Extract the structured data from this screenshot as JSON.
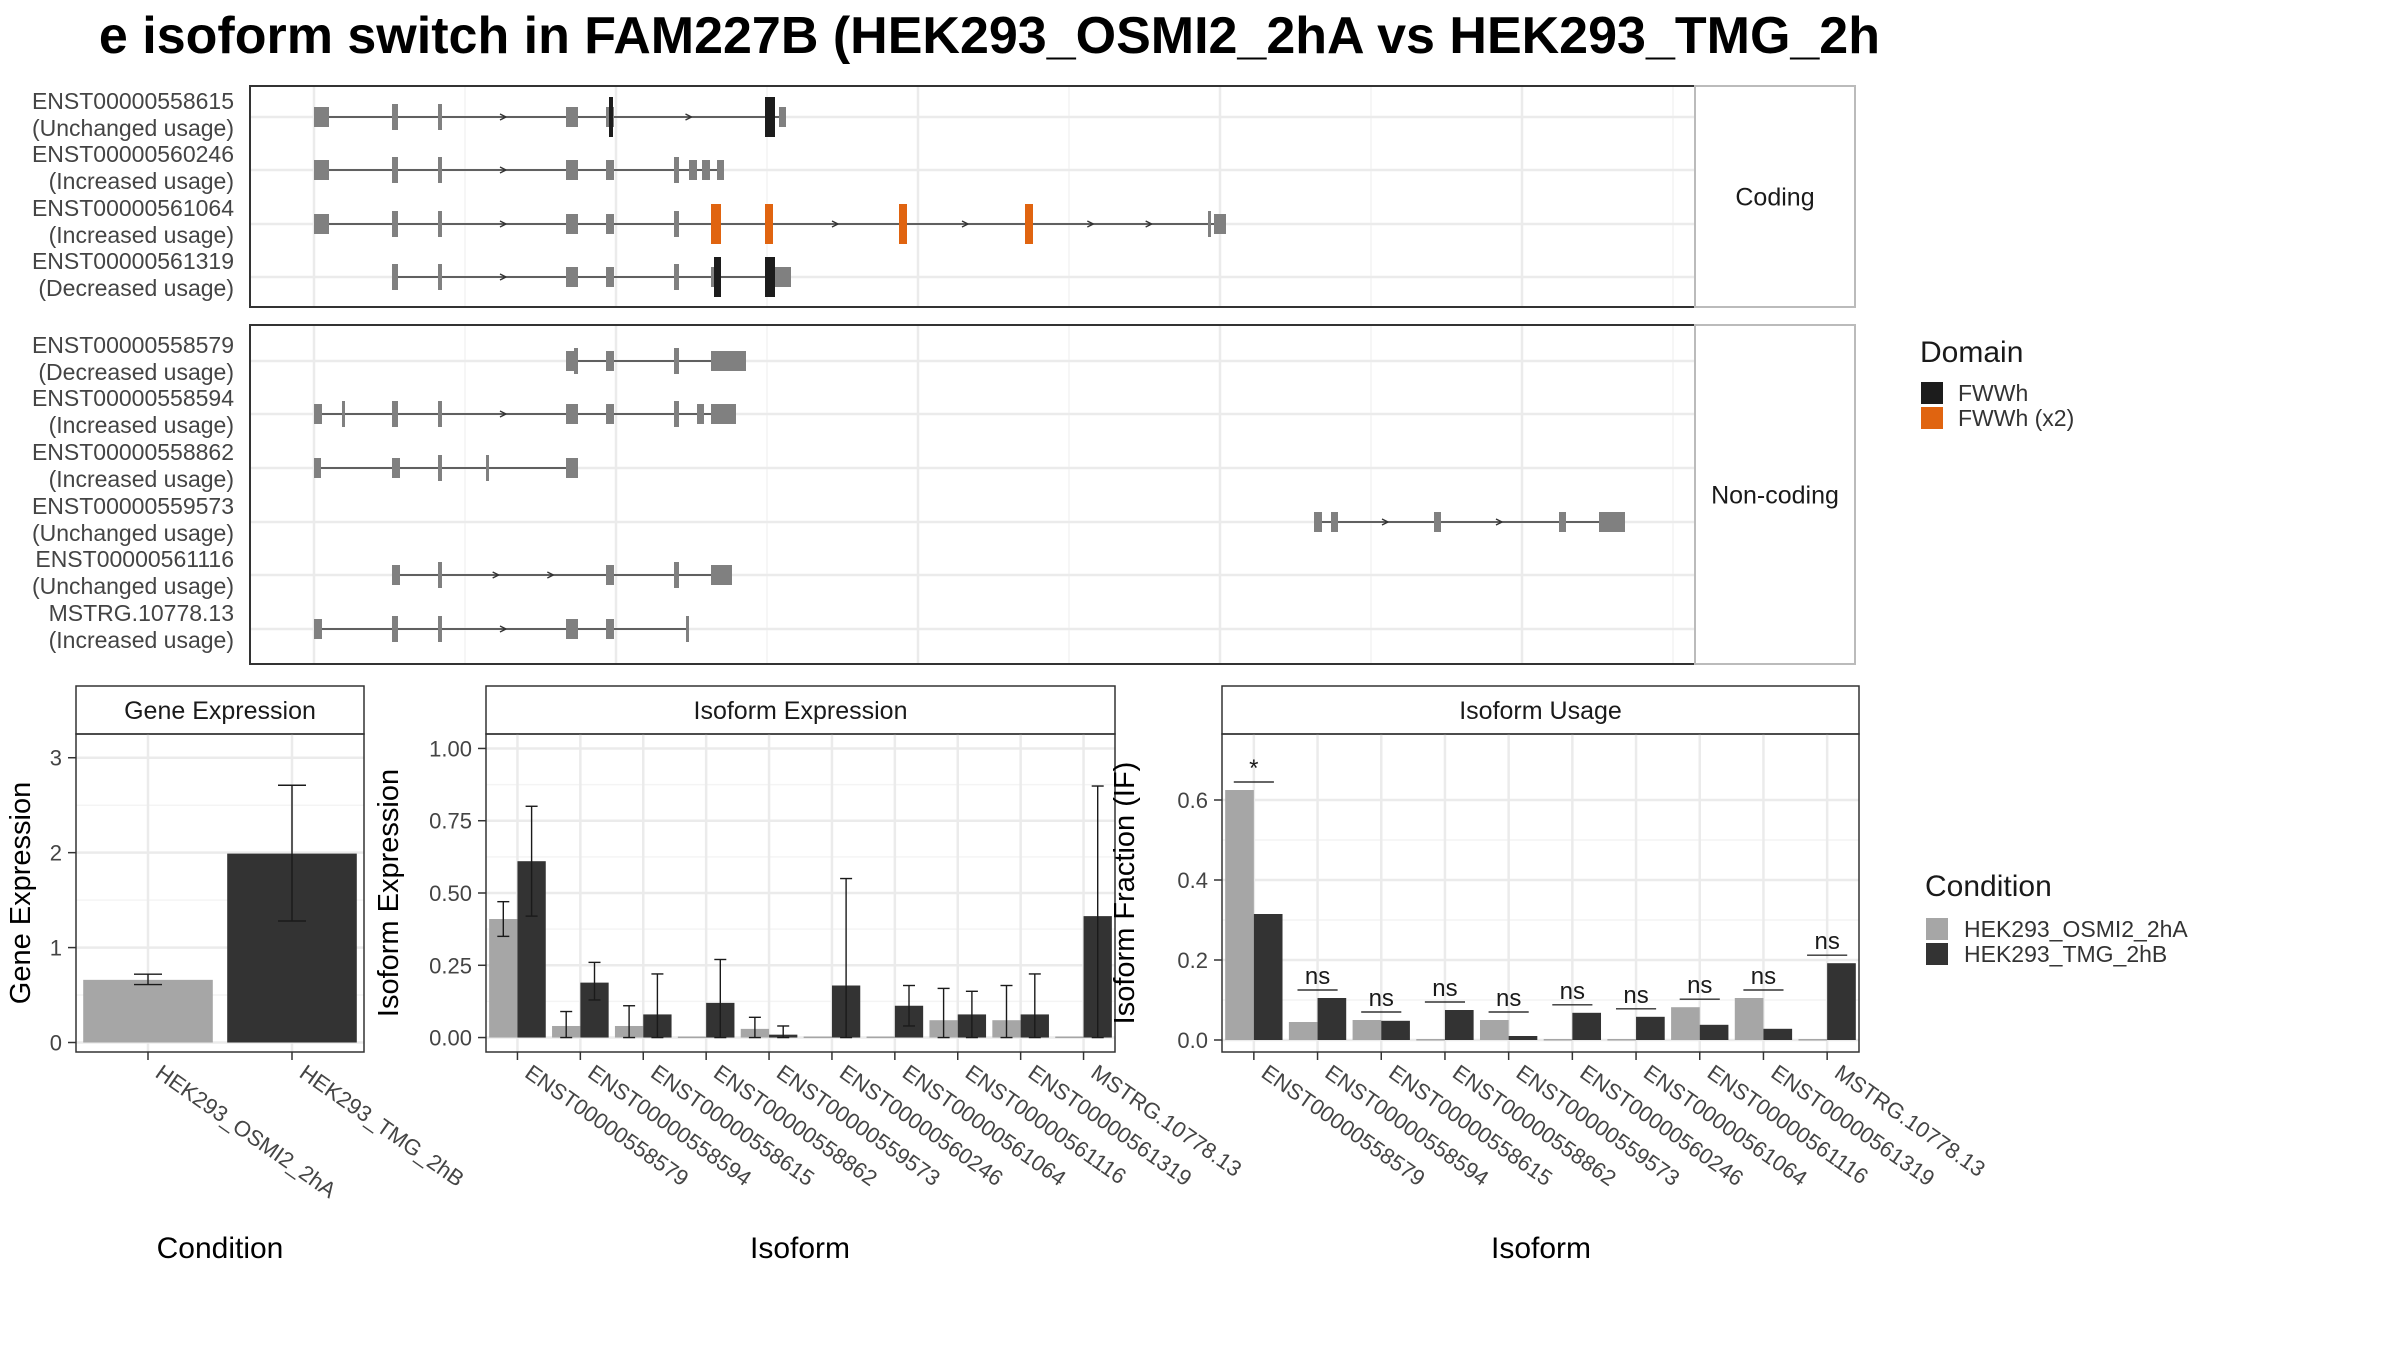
{
  "title": "e isoform switch in FAM227B (HEK293_OSMI2_2hA vs HEK293_TMG_2h",
  "structure": {
    "panels": [
      {
        "label": "Coding",
        "transcripts": [
          {
            "id": "ENST00000558615",
            "usage": "(Unchanged usage)",
            "exons": [
              [
                0,
                15
              ],
              [
                78,
                84
              ],
              [
                124,
                128
              ],
              [
                252,
                264
              ],
              [
                292,
                300
              ],
              [
                451,
                461
              ],
              [
                465,
                472
              ]
            ],
            "domains": [
              {
                "range": [
                  295,
                  298
                ],
                "domain": "FWWh"
              },
              {
                "range": [
                  451,
                  461
                ],
                "domain": "FWWh"
              }
            ]
          },
          {
            "id": "ENST00000560246",
            "usage": "(Increased usage)",
            "exons": [
              [
                0,
                15
              ],
              [
                78,
                84
              ],
              [
                124,
                128
              ],
              [
                252,
                264
              ],
              [
                292,
                300
              ],
              [
                360,
                365
              ],
              [
                375,
                383
              ],
              [
                388,
                396
              ],
              [
                403,
                410
              ]
            ],
            "domains": []
          },
          {
            "id": "ENST00000561064",
            "usage": "(Increased usage)",
            "exons": [
              [
                0,
                15
              ],
              [
                78,
                84
              ],
              [
                124,
                128
              ],
              [
                252,
                264
              ],
              [
                292,
                300
              ],
              [
                360,
                365
              ],
              [
                397,
                407
              ],
              [
                451,
                459
              ],
              [
                585,
                593
              ],
              [
                711,
                719
              ],
              [
                894,
                896
              ],
              [
                900,
                912
              ]
            ],
            "domains": [
              {
                "range": [
                  397,
                  407
                ],
                "domain": "FWWh (x2)"
              },
              {
                "range": [
                  451,
                  459
                ],
                "domain": "FWWh (x2)"
              },
              {
                "range": [
                  585,
                  593
                ],
                "domain": "FWWh (x2)"
              },
              {
                "range": [
                  711,
                  719
                ],
                "domain": "FWWh (x2)"
              }
            ]
          },
          {
            "id": "ENST00000561319",
            "usage": "(Decreased usage)",
            "exons": [
              [
                78,
                84
              ],
              [
                124,
                128
              ],
              [
                252,
                264
              ],
              [
                292,
                300
              ],
              [
                360,
                365
              ],
              [
                397,
                407
              ],
              [
                451,
                461
              ],
              [
                461,
                477
              ]
            ],
            "domains": [
              {
                "range": [
                  400,
                  407
                ],
                "domain": "FWWh"
              },
              {
                "range": [
                  451,
                  461
                ],
                "domain": "FWWh"
              }
            ]
          }
        ]
      },
      {
        "label": "Non-coding",
        "transcripts": [
          {
            "id": "ENST00000558579",
            "usage": "(Decreased usage)",
            "exons": [
              [
                252,
                260
              ],
              [
                260,
                264
              ],
              [
                292,
                300
              ],
              [
                360,
                365
              ],
              [
                397,
                410
              ],
              [
                410,
                432
              ]
            ],
            "domains": []
          },
          {
            "id": "ENST00000558594",
            "usage": "(Increased usage)",
            "exons": [
              [
                0,
                8
              ],
              [
                28,
                31
              ],
              [
                78,
                84
              ],
              [
                124,
                128
              ],
              [
                252,
                264
              ],
              [
                292,
                300
              ],
              [
                360,
                365
              ],
              [
                383,
                390
              ],
              [
                397,
                422
              ]
            ],
            "domains": []
          },
          {
            "id": "ENST00000558862",
            "usage": "(Increased usage)",
            "exons": [
              [
                0,
                7
              ],
              [
                78,
                86
              ],
              [
                124,
                128
              ],
              [
                172,
                175
              ],
              [
                252,
                264
              ]
            ],
            "domains": []
          },
          {
            "id": "ENST00000559573",
            "usage": "(Unchanged usage)",
            "exons": [
              [
                1000,
                1008
              ],
              [
                1017,
                1024
              ],
              [
                1120,
                1127
              ],
              [
                1245,
                1252
              ],
              [
                1285,
                1311
              ]
            ],
            "domains": []
          },
          {
            "id": "ENST00000561116",
            "usage": "(Unchanged usage)",
            "exons": [
              [
                78,
                86
              ],
              [
                124,
                128
              ],
              [
                292,
                300
              ],
              [
                360,
                365
              ],
              [
                397,
                418
              ]
            ],
            "domains": []
          },
          {
            "id": "MSTRG.10778.13",
            "usage": "(Increased usage)",
            "exons": [
              [
                0,
                8
              ],
              [
                78,
                84
              ],
              [
                124,
                128
              ],
              [
                252,
                264
              ],
              [
                292,
                300
              ],
              [
                372,
                374
              ]
            ],
            "domains": []
          }
        ]
      }
    ],
    "legend_title": "Domain",
    "legend": [
      {
        "name": "FWWh",
        "color": "#1c1c1c"
      },
      {
        "name": "FWWh (x2)",
        "color": "#e06410"
      }
    ],
    "exon_color": "#808080"
  },
  "gene_expression": {
    "strip": "Gene Expression",
    "ylabel": "Gene Expression",
    "xlabel": "Condition",
    "categories": [
      "HEK293_OSMI2_2hA",
      "HEK293_TMG_2hB"
    ],
    "yticks": [
      "0",
      "1",
      "2",
      "3"
    ]
  },
  "isoform_expression": {
    "strip": "Isoform Expression",
    "ylabel": "Isoform Expression",
    "xlabel": "Isoform",
    "yticks": [
      "0.00",
      "0.25",
      "0.50",
      "0.75",
      "1.00"
    ]
  },
  "isoform_usage": {
    "strip": "Isoform Usage",
    "ylabel": "Isoform Fraction (IF)",
    "xlabel": "Isoform",
    "yticks": [
      "0.0",
      "0.2",
      "0.4",
      "0.6"
    ],
    "significance": [
      "*",
      "ns",
      "ns",
      "ns",
      "ns",
      "ns",
      "ns",
      "ns",
      "ns",
      "ns"
    ]
  },
  "condition_legend": {
    "title": "Condition",
    "entries": [
      {
        "name": "HEK293_OSMI2_2hA",
        "color": "#a6a6a6"
      },
      {
        "name": "HEK293_TMG_2hB",
        "color": "#333333"
      }
    ]
  },
  "chart_data": [
    {
      "type": "bar",
      "title": "Gene Expression",
      "xlabel": "Condition",
      "ylabel": "Gene Expression",
      "categories": [
        "HEK293_OSMI2_2hA",
        "HEK293_TMG_2hB"
      ],
      "values": [
        0.66,
        1.99
      ],
      "errors": [
        [
          0.61,
          0.72
        ],
        [
          1.28,
          2.71
        ]
      ],
      "ylim": [
        -0.1,
        3.25
      ]
    },
    {
      "type": "bar",
      "title": "Isoform Expression",
      "xlabel": "Isoform",
      "ylabel": "Isoform Expression",
      "categories": [
        "ENST00000558579",
        "ENST00000558594",
        "ENST00000558615",
        "ENST00000558862",
        "ENST00000559573",
        "ENST00000560246",
        "ENST00000561064",
        "ENST00000561116",
        "ENST00000561319",
        "MSTRG.10778.13"
      ],
      "series": [
        {
          "name": "HEK293_OSMI2_2hA",
          "values": [
            0.41,
            0.04,
            0.04,
            0.0,
            0.03,
            0.0,
            0.0,
            0.06,
            0.06,
            0.0
          ],
          "errors": [
            [
              0.35,
              0.47
            ],
            [
              0.0,
              0.09
            ],
            [
              0.0,
              0.11
            ],
            null,
            [
              0.0,
              0.07
            ],
            null,
            null,
            [
              0.0,
              0.17
            ],
            [
              0.0,
              0.18
            ],
            null
          ]
        },
        {
          "name": "HEK293_TMG_2hB",
          "values": [
            0.61,
            0.19,
            0.08,
            0.12,
            0.01,
            0.18,
            0.11,
            0.08,
            0.08,
            0.42
          ],
          "errors": [
            [
              0.42,
              0.8
            ],
            [
              0.13,
              0.26
            ],
            [
              0.0,
              0.22
            ],
            [
              0.0,
              0.27
            ],
            [
              0.0,
              0.04
            ],
            [
              0.0,
              0.55
            ],
            [
              0.04,
              0.18
            ],
            [
              0.0,
              0.16
            ],
            [
              0.0,
              0.22
            ],
            [
              0.0,
              0.87
            ]
          ]
        }
      ],
      "ylim": [
        -0.05,
        1.05
      ]
    },
    {
      "type": "bar",
      "title": "Isoform Usage",
      "xlabel": "Isoform",
      "ylabel": "Isoform Fraction (IF)",
      "categories": [
        "ENST00000558579",
        "ENST00000558594",
        "ENST00000558615",
        "ENST00000558862",
        "ENST00000559573",
        "ENST00000560246",
        "ENST00000561064",
        "ENST00000561116",
        "ENST00000561319",
        "MSTRG.10778.13"
      ],
      "series": [
        {
          "name": "HEK293_OSMI2_2hA",
          "values": [
            0.625,
            0.045,
            0.05,
            0.0,
            0.05,
            0.0,
            0.0,
            0.082,
            0.105,
            0.0
          ]
        },
        {
          "name": "HEK293_TMG_2hB",
          "values": [
            0.315,
            0.105,
            0.048,
            0.075,
            0.01,
            0.068,
            0.058,
            0.038,
            0.028,
            0.192
          ]
        }
      ],
      "significance": [
        "*",
        "ns",
        "ns",
        "ns",
        "ns",
        "ns",
        "ns",
        "ns",
        "ns",
        "ns"
      ],
      "ylim": [
        -0.03,
        0.765
      ]
    }
  ]
}
